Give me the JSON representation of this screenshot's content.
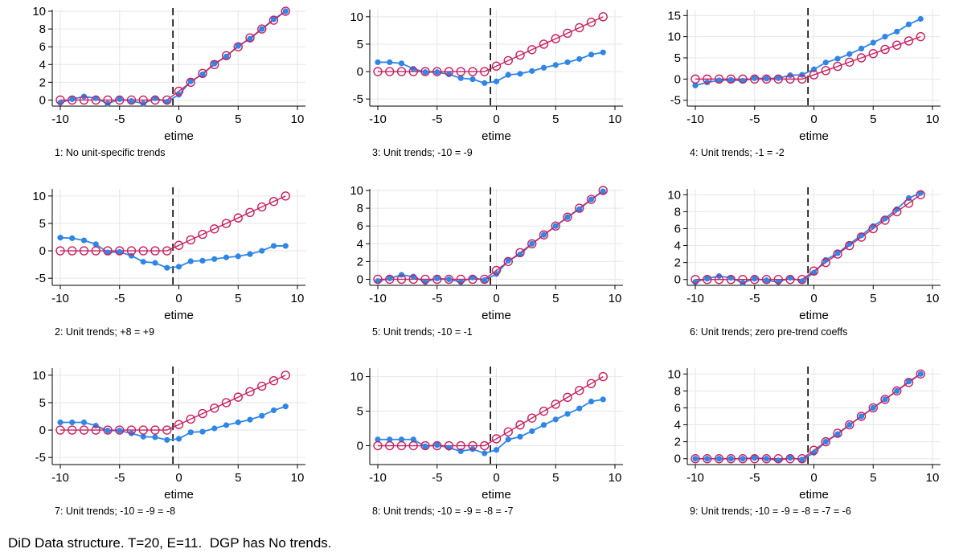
{
  "caption": "DiD Data structure. T=20, E=11.  DGP has No trends.",
  "colors": {
    "estimated": "#2f86e6",
    "true": "#c8205f",
    "grid": "#e6e6e6",
    "axis": "#000000"
  },
  "chart_data": [
    {
      "type": "line",
      "note": "1: No unit-specific trends",
      "xlabel": "etime",
      "xlim": [
        -10,
        10
      ],
      "xticks": [
        -10,
        -5,
        0,
        5,
        10
      ],
      "ylim": [
        -0.5,
        10
      ],
      "yticks": [
        0,
        2,
        4,
        6,
        8,
        10
      ],
      "treatment_line_x": -0.5,
      "x": [
        -10,
        -9,
        -8,
        -7,
        -6,
        -5,
        -4,
        -3,
        -2,
        -1,
        0,
        1,
        2,
        3,
        4,
        5,
        6,
        7,
        8,
        9
      ],
      "series": [
        {
          "values": [
            -0.3,
            0.1,
            0.4,
            0.2,
            -0.4,
            0.1,
            -0.1,
            -0.4,
            0.2,
            -0.2,
            0.6,
            2.1,
            2.9,
            4.1,
            4.9,
            6.1,
            6.9,
            8.0,
            9.1,
            10.0
          ]
        },
        {
          "values": [
            0,
            0,
            0,
            0,
            0,
            0,
            0,
            0,
            0,
            0,
            1,
            2,
            3,
            4,
            5,
            6,
            7,
            8,
            9,
            10
          ]
        }
      ]
    },
    {
      "type": "line",
      "note": "3: Unit trends; -10 = -9",
      "xlabel": "etime",
      "xlim": [
        -10,
        10
      ],
      "xticks": [
        -10,
        -5,
        0,
        5,
        10
      ],
      "ylim": [
        -6,
        11
      ],
      "yticks": [
        -5,
        0,
        5,
        10
      ],
      "treatment_line_x": -0.5,
      "x": [
        -10,
        -9,
        -8,
        -7,
        -6,
        -5,
        -4,
        -3,
        -2,
        -1,
        0,
        1,
        2,
        3,
        4,
        5,
        6,
        7,
        8,
        9
      ],
      "series": [
        {
          "values": [
            1.7,
            1.7,
            1.5,
            0.5,
            -0.1,
            -0.1,
            -0.5,
            -1.2,
            -1.4,
            -2.1,
            -1.8,
            -0.6,
            -0.4,
            0.1,
            0.7,
            1.2,
            1.7,
            2.3,
            3.1,
            3.5
          ]
        },
        {
          "values": [
            0,
            0,
            0,
            0,
            0,
            0,
            0,
            0,
            0,
            0,
            1,
            2,
            3,
            4,
            5,
            6,
            7,
            8,
            9,
            10
          ]
        }
      ]
    },
    {
      "type": "line",
      "note": "4: Unit trends; -1 = -2",
      "xlabel": "etime",
      "xlim": [
        -10,
        10
      ],
      "xticks": [
        -10,
        -5,
        0,
        5,
        10
      ],
      "ylim": [
        -6,
        16
      ],
      "yticks": [
        -5,
        0,
        5,
        10,
        15
      ],
      "treatment_line_x": -0.5,
      "x": [
        -10,
        -9,
        -8,
        -7,
        -6,
        -5,
        -4,
        -3,
        -2,
        -1,
        0,
        1,
        2,
        3,
        4,
        5,
        6,
        7,
        8,
        9
      ],
      "series": [
        {
          "values": [
            -1.5,
            -0.8,
            -0.3,
            -0.2,
            -0.4,
            0.2,
            0.1,
            0.2,
            0.9,
            1.0,
            2.3,
            3.9,
            4.8,
            5.9,
            7.2,
            8.6,
            10.0,
            11.2,
            12.9,
            14.2
          ]
        },
        {
          "values": [
            0,
            0,
            0,
            0,
            0,
            0,
            0,
            0,
            0,
            0,
            1,
            2,
            3,
            4,
            5,
            6,
            7,
            8,
            9,
            10
          ]
        }
      ]
    },
    {
      "type": "line",
      "note": "2: Unit trends; +8 = +9",
      "xlabel": "etime",
      "xlim": [
        -10,
        10
      ],
      "xticks": [
        -10,
        -5,
        0,
        5,
        10
      ],
      "ylim": [
        -6,
        11
      ],
      "yticks": [
        -5,
        0,
        5,
        10
      ],
      "treatment_line_x": -0.5,
      "x": [
        -10,
        -9,
        -8,
        -7,
        -6,
        -5,
        -4,
        -3,
        -2,
        -1,
        0,
        1,
        2,
        3,
        4,
        5,
        6,
        7,
        8,
        9
      ],
      "series": [
        {
          "values": [
            2.4,
            2.3,
            1.9,
            1.2,
            -0.3,
            -0.2,
            -0.9,
            -2.0,
            -2.2,
            -3.1,
            -2.9,
            -1.9,
            -1.8,
            -1.5,
            -1.2,
            -1.0,
            -0.6,
            0.0,
            0.9,
            0.9
          ]
        },
        {
          "values": [
            0,
            0,
            0,
            0,
            0,
            0,
            0,
            0,
            0,
            0,
            1,
            2,
            3,
            4,
            5,
            6,
            7,
            8,
            9,
            10
          ]
        }
      ]
    },
    {
      "type": "line",
      "note": "5: Unit trends; -10 = -1",
      "xlabel": "etime",
      "xlim": [
        -10,
        10
      ],
      "xticks": [
        -10,
        -5,
        0,
        5,
        10
      ],
      "ylim": [
        -0.5,
        10
      ],
      "yticks": [
        0,
        2,
        4,
        6,
        8,
        10
      ],
      "treatment_line_x": -0.5,
      "x": [
        -10,
        -9,
        -8,
        -7,
        -6,
        -5,
        -4,
        -3,
        -2,
        -1,
        0,
        1,
        2,
        3,
        4,
        5,
        6,
        7,
        8,
        9
      ],
      "series": [
        {
          "values": [
            -0.2,
            0.1,
            0.5,
            0.3,
            -0.3,
            0.1,
            0.0,
            -0.3,
            0.2,
            -0.1,
            0.6,
            2.1,
            2.8,
            4.0,
            5.0,
            6.0,
            7.0,
            7.9,
            9.0,
            9.9
          ]
        },
        {
          "values": [
            0,
            0,
            0,
            0,
            0,
            0,
            0,
            0,
            0,
            0,
            1,
            2,
            3,
            4,
            5,
            6,
            7,
            8,
            9,
            10
          ]
        }
      ]
    },
    {
      "type": "line",
      "note": "6: Unit trends; zero pre-trend coeffs",
      "xlabel": "etime",
      "xlim": [
        -10,
        10
      ],
      "xticks": [
        -10,
        -5,
        0,
        5,
        10
      ],
      "ylim": [
        -0.5,
        10.5
      ],
      "yticks": [
        0,
        2,
        4,
        6,
        8,
        10
      ],
      "treatment_line_x": -0.5,
      "x": [
        -10,
        -9,
        -8,
        -7,
        -6,
        -5,
        -4,
        -3,
        -2,
        -1,
        0,
        1,
        2,
        3,
        4,
        5,
        6,
        7,
        8,
        9
      ],
      "series": [
        {
          "values": [
            -0.3,
            0.1,
            0.4,
            0.2,
            -0.4,
            0.1,
            -0.1,
            -0.3,
            0.2,
            -0.2,
            0.8,
            2.3,
            3.1,
            4.2,
            5.2,
            6.3,
            7.2,
            8.3,
            9.6,
            10.2
          ]
        },
        {
          "values": [
            0,
            0,
            0,
            0,
            0,
            0,
            0,
            0,
            0,
            0,
            1,
            2,
            3,
            4,
            5,
            6,
            7,
            8,
            9,
            10
          ]
        }
      ]
    },
    {
      "type": "line",
      "note": "7: Unit trends; -10 = -9 = -8",
      "xlabel": "etime",
      "xlim": [
        -10,
        10
      ],
      "xticks": [
        -10,
        -5,
        0,
        5,
        10
      ],
      "ylim": [
        -6,
        11
      ],
      "yticks": [
        -5,
        0,
        5,
        10
      ],
      "treatment_line_x": -0.5,
      "x": [
        -10,
        -9,
        -8,
        -7,
        -6,
        -5,
        -4,
        -3,
        -2,
        -1,
        0,
        1,
        2,
        3,
        4,
        5,
        6,
        7,
        8,
        9
      ],
      "series": [
        {
          "values": [
            1.4,
            1.4,
            1.4,
            0.8,
            -0.1,
            -0.1,
            -0.6,
            -1.2,
            -1.3,
            -1.8,
            -1.6,
            -0.4,
            -0.3,
            0.3,
            0.9,
            1.4,
            1.9,
            2.6,
            3.6,
            4.3
          ]
        },
        {
          "values": [
            0,
            0,
            0,
            0,
            0,
            0,
            0,
            0,
            0,
            0,
            1,
            2,
            3,
            4,
            5,
            6,
            7,
            8,
            9,
            10
          ]
        }
      ]
    },
    {
      "type": "line",
      "note": "8: Unit trends; -10 = -9 = -8 = -7",
      "xlabel": "etime",
      "xlim": [
        -10,
        10
      ],
      "xticks": [
        -10,
        -5,
        0,
        5,
        10
      ],
      "ylim": [
        -2.5,
        11
      ],
      "yticks": [
        0,
        5,
        10
      ],
      "treatment_line_x": -0.5,
      "x": [
        -10,
        -9,
        -8,
        -7,
        -6,
        -5,
        -4,
        -3,
        -2,
        -1,
        0,
        1,
        2,
        3,
        4,
        5,
        6,
        7,
        8,
        9
      ],
      "series": [
        {
          "values": [
            0.9,
            0.9,
            0.9,
            0.9,
            -0.1,
            0.1,
            -0.3,
            -0.8,
            -0.5,
            -1.1,
            -0.6,
            0.9,
            1.3,
            2.1,
            3.0,
            3.8,
            4.6,
            5.4,
            6.4,
            6.7
          ]
        },
        {
          "values": [
            0,
            0,
            0,
            0,
            0,
            0,
            0,
            0,
            0,
            0,
            1,
            2,
            3,
            4,
            5,
            6,
            7,
            8,
            9,
            10
          ]
        }
      ]
    },
    {
      "type": "line",
      "note": "9: Unit trends; -10 = -9 = -8 = -7 = -6",
      "xlabel": "etime",
      "xlim": [
        -10,
        10
      ],
      "xticks": [
        -10,
        -5,
        0,
        5,
        10
      ],
      "ylim": [
        -0.5,
        10.5
      ],
      "yticks": [
        0,
        2,
        4,
        6,
        8,
        10
      ],
      "treatment_line_x": -0.5,
      "x": [
        -10,
        -9,
        -8,
        -7,
        -6,
        -5,
        -4,
        -3,
        -2,
        -1,
        0,
        1,
        2,
        3,
        4,
        5,
        6,
        7,
        8,
        9
      ],
      "series": [
        {
          "values": [
            0.0,
            0.0,
            0.0,
            0.0,
            0.0,
            0.1,
            0.0,
            -0.2,
            0.1,
            -0.1,
            0.7,
            2.0,
            2.9,
            4.0,
            5.0,
            6.0,
            7.0,
            8.0,
            9.1,
            10.0
          ]
        },
        {
          "values": [
            0,
            0,
            0,
            0,
            0,
            0,
            0,
            0,
            0,
            0,
            1,
            2,
            3,
            4,
            5,
            6,
            7,
            8,
            9,
            10
          ]
        }
      ]
    }
  ]
}
